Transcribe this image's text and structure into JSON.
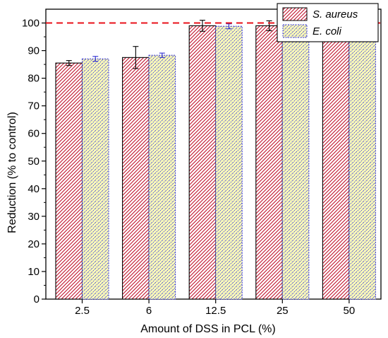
{
  "chart_data": {
    "type": "bar",
    "xlabel": "Amount of DSS in PCL (%)",
    "ylabel": "Reduction (% to control)",
    "ylim": [
      0,
      105
    ],
    "yticks": [
      0,
      10,
      20,
      30,
      40,
      50,
      60,
      70,
      80,
      90,
      100
    ],
    "categories": [
      "2.5",
      "6",
      "12.5",
      "25",
      "50"
    ],
    "reference_line": {
      "y": 100,
      "style": "dashed",
      "color": "#e8101a"
    },
    "legend_position": "top-right",
    "series": [
      {
        "name": "S. aureus",
        "values": [
          85.5,
          87.5,
          99.0,
          99.0,
          99.2
        ],
        "errors": [
          0.9,
          4.0,
          2.0,
          1.8,
          0.8
        ],
        "fill": "hatch-diagonal",
        "stroke_color": "#c0102a",
        "background_color": "#ffffff",
        "border_color": "#000000"
      },
      {
        "name": "E. coli",
        "values": [
          87.0,
          88.3,
          98.8,
          98.9,
          99.0
        ],
        "errors": [
          0.9,
          0.8,
          0.9,
          1.9,
          2.2
        ],
        "fill": "hatch-diagonal",
        "stroke_color": "#3a3ad8",
        "background_color": "#fbfbb8",
        "border_color": "#3a3ad8"
      }
    ]
  }
}
